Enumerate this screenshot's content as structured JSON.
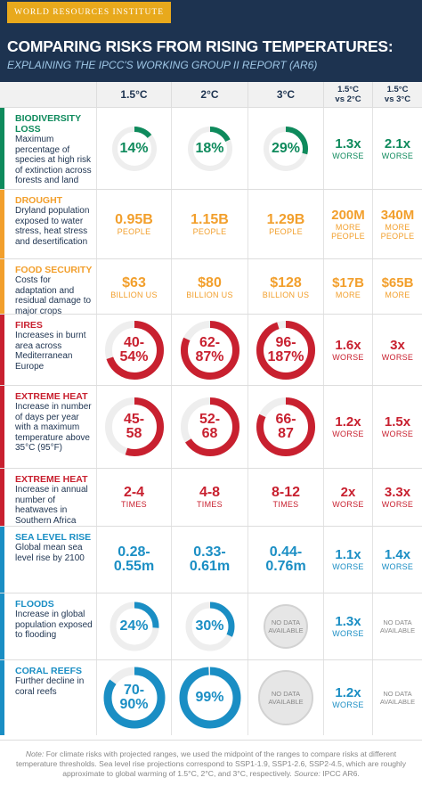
{
  "header": {
    "org": "WORLD RESOURCES INSTITUTE",
    "title": "COMPARING RISKS FROM RISING TEMPERATURES:",
    "subtitle": "EXPLAINING THE IPCC'S WORKING GROUP II REPORT (AR6)"
  },
  "columns": [
    [
      "1.5°C"
    ],
    [
      "2°C"
    ],
    [
      "3°C"
    ],
    [
      "1.5°C",
      "vs 2°C"
    ],
    [
      "1.5°C",
      "vs 3°C"
    ]
  ],
  "rows": [
    {
      "category": "BIODIVERSITY LOSS",
      "description": "Maximum percentage of species at high risk of extinction across forests and land",
      "color": "#0e8a5c",
      "cells": [
        {
          "main": [
            "14%"
          ]
        },
        {
          "main": [
            "18%"
          ]
        },
        {
          "main": [
            "29%"
          ]
        },
        {
          "main": [
            "1.3x"
          ],
          "unit": "WORSE"
        },
        {
          "main": [
            "2.1x"
          ],
          "unit": "WORSE"
        }
      ]
    },
    {
      "category": "DROUGHT",
      "description": "Dryland population exposed to water stress, heat stress and desertification",
      "color": "#f29f2c",
      "cells": [
        {
          "main": [
            "0.95B"
          ],
          "unit": "PEOPLE"
        },
        {
          "main": [
            "1.15B"
          ],
          "unit": "PEOPLE"
        },
        {
          "main": [
            "1.29B"
          ],
          "unit": "PEOPLE"
        },
        {
          "main": [
            "200M"
          ],
          "unit": "MORE PEOPLE"
        },
        {
          "main": [
            "340M"
          ],
          "unit": "MORE PEOPLE"
        }
      ]
    },
    {
      "category": "FOOD SECURITY",
      "description": "Costs for adaptation and residual damage to major crops",
      "color": "#f29f2c",
      "cells": [
        {
          "main": [
            "$63"
          ],
          "unit": "BILLION US"
        },
        {
          "main": [
            "$80"
          ],
          "unit": "BILLION US"
        },
        {
          "main": [
            "$128"
          ],
          "unit": "BILLION US"
        },
        {
          "main": [
            "$17B"
          ],
          "unit": "MORE"
        },
        {
          "main": [
            "$65B"
          ],
          "unit": "MORE"
        }
      ]
    },
    {
      "category": "FIRES",
      "description": "Increases in burnt area across Mediterranean Europe",
      "color": "#c8202f",
      "cells": [
        {
          "main": [
            "40-",
            "54%"
          ]
        },
        {
          "main": [
            "62-",
            "87%"
          ]
        },
        {
          "main": [
            "96-",
            "187%"
          ]
        },
        {
          "main": [
            "1.6x"
          ],
          "unit": "WORSE"
        },
        {
          "main": [
            "3x"
          ],
          "unit": "WORSE"
        }
      ]
    },
    {
      "category": "EXTREME HEAT",
      "description": "Increase in number of days per year with a maximum temperature above 35°C (95°F)",
      "color": "#c8202f",
      "cells": [
        {
          "main": [
            "45-",
            "58"
          ]
        },
        {
          "main": [
            "52-",
            "68"
          ]
        },
        {
          "main": [
            "66-",
            "87"
          ]
        },
        {
          "main": [
            "1.2x"
          ],
          "unit": "WORSE"
        },
        {
          "main": [
            "1.5x"
          ],
          "unit": "WORSE"
        }
      ]
    },
    {
      "category": "EXTREME HEAT",
      "description": "Increase in annual number of heatwaves in Southern Africa",
      "color": "#c8202f",
      "cells": [
        {
          "main": [
            "2-4"
          ],
          "unit": "TIMES"
        },
        {
          "main": [
            "4-8"
          ],
          "unit": "TIMES"
        },
        {
          "main": [
            "8-12"
          ],
          "unit": "TIMES"
        },
        {
          "main": [
            "2x"
          ],
          "unit": "WORSE"
        },
        {
          "main": [
            "3.3x"
          ],
          "unit": "WORSE"
        }
      ]
    },
    {
      "category": "SEA LEVEL RISE",
      "description": "Global mean sea level rise by 2100",
      "color": "#1a8ec4",
      "cells": [
        {
          "main": [
            "0.28-",
            "0.55m"
          ]
        },
        {
          "main": [
            "0.33-",
            "0.61m"
          ]
        },
        {
          "main": [
            "0.44-",
            "0.76m"
          ]
        },
        {
          "main": [
            "1.1x"
          ],
          "unit": "WORSE"
        },
        {
          "main": [
            "1.4x"
          ],
          "unit": "WORSE"
        }
      ]
    },
    {
      "category": "FLOODS",
      "description": "Increase in global population exposed to flooding",
      "color": "#1a8ec4",
      "cells": [
        {
          "main": [
            "24%"
          ]
        },
        {
          "main": [
            "30%"
          ]
        },
        {
          "nodata": [
            "NO DATA",
            "AVAILABLE"
          ]
        },
        {
          "main": [
            "1.3x"
          ],
          "unit": "WORSE"
        },
        {
          "nodata": [
            "NO DATA",
            "AVAILABLE"
          ]
        }
      ]
    },
    {
      "category": "CORAL REEFS",
      "description": "Further decline in coral reefs",
      "color": "#1a8ec4",
      "cells": [
        {
          "main": [
            "70-",
            "90%"
          ]
        },
        {
          "main": [
            "99%"
          ]
        },
        {
          "nodata": [
            "NO DATA",
            "AVAILABLE"
          ]
        },
        {
          "main": [
            "1.2x"
          ],
          "unit": "WORSE"
        },
        {
          "nodata": [
            "NO DATA",
            "AVAILABLE"
          ]
        }
      ]
    }
  ],
  "note": {
    "label": "Note:",
    "text": "For climate risks with projected ranges, we used the midpoint of the ranges to compare risks at different temperature thresholds. Sea level rise projections correspond to SSP1-1.9, SSP1-2.6, SSP2-4.5, which are roughly approximate to global warming of 1.5°C, 2°C, and 3°C, respectively.",
    "source_label": "Source:",
    "source": "IPCC AR6."
  }
}
